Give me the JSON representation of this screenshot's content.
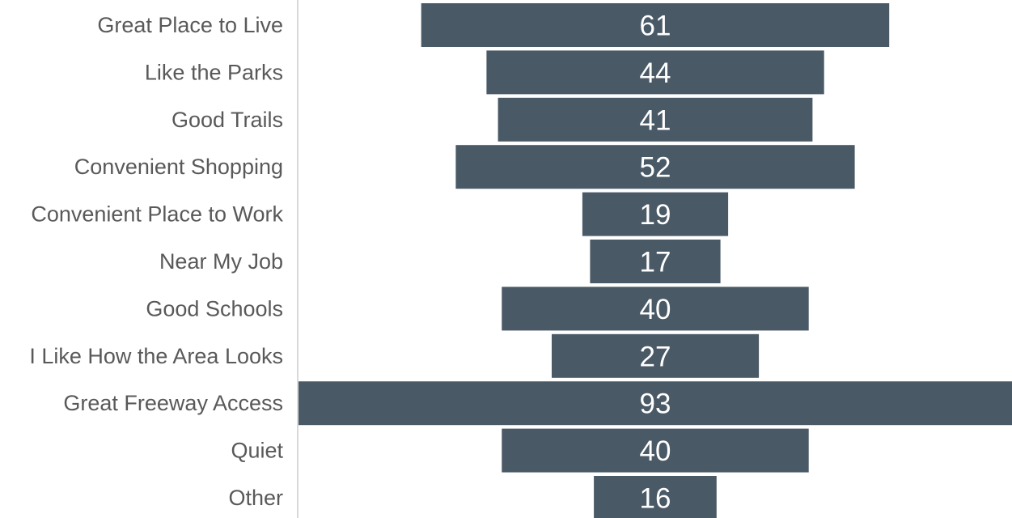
{
  "chart_data": {
    "type": "bar",
    "orientation": "horizontal",
    "style": "funnel (bars centered)",
    "categories": [
      "Great Place to Live",
      "Like the Parks",
      "Good Trails",
      "Convenient Shopping",
      "Convenient Place to Work",
      "Near My Job",
      "Good Schools",
      "I Like How the Area Looks",
      "Great Freeway Access",
      "Quiet",
      "Other"
    ],
    "values": [
      61,
      44,
      41,
      52,
      19,
      17,
      40,
      27,
      93,
      40,
      16
    ],
    "title": "",
    "xlabel": "",
    "ylabel": "",
    "grid": false,
    "legend": "none",
    "data_labels": true,
    "colors": {
      "bar": "#4a5966",
      "category_text": "#595959",
      "value_text": "#ffffff",
      "axis_line": "#d9d9d9"
    }
  }
}
